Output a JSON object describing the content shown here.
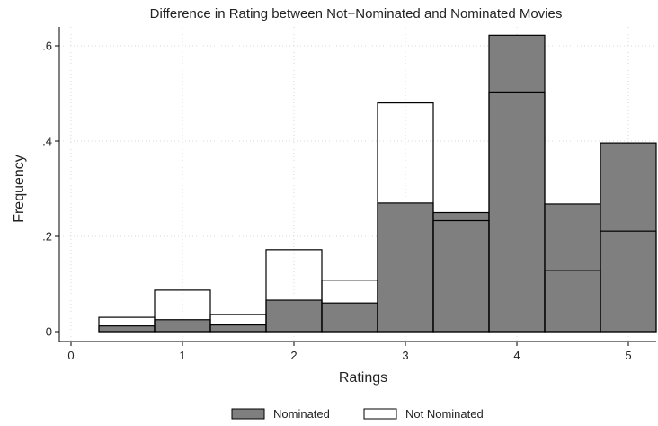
{
  "chart_data": {
    "type": "bar",
    "title": "Difference in Rating between Not−Nominated and Nominated Movies",
    "xlabel": "Ratings",
    "ylabel": "Frequency",
    "xlim": [
      -0.1,
      5.25
    ],
    "ylim": [
      0,
      0.66
    ],
    "x_ticks": [
      {
        "value": 0,
        "label": "0"
      },
      {
        "value": 1,
        "label": "1"
      },
      {
        "value": 2,
        "label": "2"
      },
      {
        "value": 3,
        "label": "3"
      },
      {
        "value": 4,
        "label": "4"
      },
      {
        "value": 5,
        "label": "5"
      }
    ],
    "y_ticks": [
      {
        "value": 0,
        "label": "0"
      },
      {
        "value": 0.2,
        "label": ".2"
      },
      {
        "value": 0.4,
        "label": ".4"
      },
      {
        "value": 0.6,
        "label": ".6"
      }
    ],
    "grid": true,
    "bin_edges": [
      0.25,
      0.75,
      1.25,
      1.75,
      2.25,
      2.75,
      3.25,
      3.75,
      4.25,
      4.75,
      5.25
    ],
    "series": [
      {
        "name": "Nominated",
        "color": "#7f7f7f",
        "values": [
          0.012,
          0.025,
          0.014,
          0.066,
          0.06,
          0.27,
          0.25,
          0.622,
          0.268,
          0.396
        ]
      },
      {
        "name": "Not Nominated",
        "color": "#ffffff",
        "values": [
          0.03,
          0.087,
          0.036,
          0.172,
          0.108,
          0.48,
          0.233,
          0.503,
          0.128,
          0.211
        ]
      }
    ],
    "legend": {
      "position": "bottom-center",
      "entries": [
        "Nominated",
        "Not Nominated"
      ]
    }
  }
}
